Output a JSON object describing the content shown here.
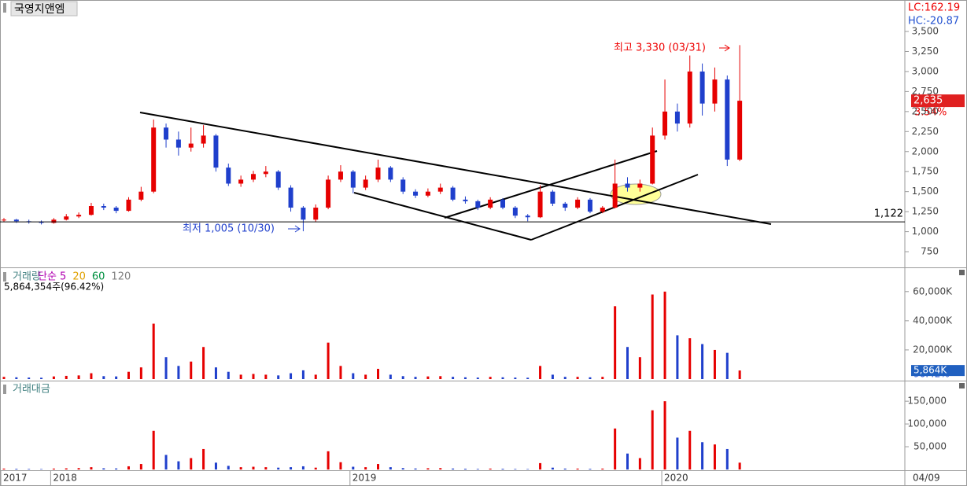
{
  "chart_data": [
    {
      "type": "candlestick",
      "title": "국영지앤엠",
      "lc": "LC:162.19",
      "hc": "HC:-20.87",
      "up_color": "#e60000",
      "down_color": "#1f3fcc",
      "ohlc": [
        [
          1140,
          1170,
          1120,
          1150
        ],
        [
          1150,
          1160,
          1110,
          1130
        ],
        [
          1130,
          1150,
          1100,
          1120
        ],
        [
          1120,
          1140,
          1090,
          1110
        ],
        [
          1110,
          1170,
          1100,
          1150
        ],
        [
          1150,
          1220,
          1140,
          1190
        ],
        [
          1190,
          1240,
          1170,
          1210
        ],
        [
          1210,
          1360,
          1200,
          1320
        ],
        [
          1320,
          1350,
          1270,
          1300
        ],
        [
          1300,
          1320,
          1230,
          1260
        ],
        [
          1260,
          1430,
          1250,
          1400
        ],
        [
          1400,
          1560,
          1380,
          1500
        ],
        [
          1500,
          2400,
          1480,
          2300
        ],
        [
          2300,
          2350,
          2050,
          2150
        ],
        [
          2150,
          2250,
          1950,
          2050
        ],
        [
          2050,
          2300,
          2000,
          2100
        ],
        [
          2100,
          2330,
          2050,
          2200
        ],
        [
          2200,
          2220,
          1750,
          1800
        ],
        [
          1800,
          1850,
          1570,
          1600
        ],
        [
          1600,
          1700,
          1560,
          1650
        ],
        [
          1650,
          1760,
          1620,
          1720
        ],
        [
          1720,
          1820,
          1680,
          1750
        ],
        [
          1750,
          1770,
          1520,
          1550
        ],
        [
          1550,
          1580,
          1250,
          1300
        ],
        [
          1300,
          1320,
          1005,
          1150
        ],
        [
          1150,
          1340,
          1120,
          1300
        ],
        [
          1300,
          1700,
          1280,
          1650
        ],
        [
          1650,
          1830,
          1620,
          1750
        ],
        [
          1750,
          1770,
          1480,
          1550
        ],
        [
          1550,
          1700,
          1520,
          1650
        ],
        [
          1650,
          1900,
          1620,
          1800
        ],
        [
          1800,
          1820,
          1620,
          1650
        ],
        [
          1650,
          1680,
          1470,
          1500
        ],
        [
          1500,
          1530,
          1420,
          1450
        ],
        [
          1450,
          1540,
          1430,
          1500
        ],
        [
          1500,
          1600,
          1470,
          1550
        ],
        [
          1550,
          1570,
          1380,
          1400
        ],
        [
          1400,
          1440,
          1350,
          1380
        ],
        [
          1380,
          1400,
          1270,
          1300
        ],
        [
          1300,
          1430,
          1280,
          1400
        ],
        [
          1400,
          1420,
          1280,
          1300
        ],
        [
          1300,
          1320,
          1170,
          1200
        ],
        [
          1200,
          1220,
          1130,
          1180
        ],
        [
          1180,
          1580,
          1170,
          1500
        ],
        [
          1500,
          1520,
          1320,
          1350
        ],
        [
          1350,
          1370,
          1260,
          1300
        ],
        [
          1300,
          1430,
          1280,
          1400
        ],
        [
          1400,
          1420,
          1230,
          1250
        ],
        [
          1250,
          1320,
          1230,
          1300
        ],
        [
          1300,
          1900,
          1290,
          1600
        ],
        [
          1600,
          1680,
          1500,
          1550
        ],
        [
          1550,
          1650,
          1500,
          1600
        ],
        [
          1600,
          2300,
          1590,
          2200
        ],
        [
          2200,
          2900,
          2150,
          2500
        ],
        [
          2500,
          2600,
          2250,
          2350
        ],
        [
          2350,
          3200,
          2300,
          3000
        ],
        [
          3000,
          3100,
          2450,
          2600
        ],
        [
          2600,
          3050,
          2500,
          2900
        ],
        [
          2900,
          2950,
          1820,
          1900
        ],
        [
          1900,
          3330,
          1880,
          2635
        ]
      ],
      "categories": [
        "2017",
        null,
        null,
        null,
        "2018",
        null,
        null,
        null,
        null,
        null,
        null,
        null,
        null,
        null,
        null,
        null,
        null,
        null,
        null,
        null,
        null,
        null,
        null,
        null,
        null,
        null,
        null,
        null,
        "2019",
        null,
        null,
        null,
        null,
        null,
        null,
        null,
        null,
        null,
        null,
        null,
        null,
        null,
        null,
        null,
        null,
        null,
        null,
        null,
        null,
        null,
        null,
        null,
        null,
        "2020",
        null,
        null,
        null,
        null,
        null,
        null
      ],
      "last_date": "04/09",
      "ylim": [
        554,
        3893
      ],
      "yticks": [
        {
          "value": 750,
          "label": "750"
        },
        {
          "value": 1000,
          "label": "1,000"
        },
        {
          "value": 1250,
          "label": "1,250"
        },
        {
          "value": 1500,
          "label": "1,500"
        },
        {
          "value": 1750,
          "label": "1,750"
        },
        {
          "value": 2000,
          "label": "2,000"
        },
        {
          "value": 2250,
          "label": "2,250"
        },
        {
          "value": 2500,
          "label": "2,500"
        },
        {
          "value": 2750,
          "label": "2,750"
        },
        {
          "value": 3000,
          "label": "3,000"
        },
        {
          "value": 3250,
          "label": "3,250"
        },
        {
          "value": 3500,
          "label": "3,500"
        }
      ],
      "last": {
        "value": 2635,
        "label": "2,635"
      },
      "change": "3.54%",
      "high_note": "최고 3,330 (03/31)",
      "low_note": "최저 1,005 (10/30)",
      "ref_line": {
        "value": 1122,
        "label": "1,122"
      }
    },
    {
      "type": "bar",
      "title": "거래량",
      "legend": [
        "단순 5",
        "20",
        "60",
        "120"
      ],
      "legend_colors": [
        "#b000b0",
        "#e0a000",
        "#009040",
        "#808080"
      ],
      "info": "5,864,354주(96.42%)",
      "values": [
        1500,
        1200,
        1000,
        900,
        1800,
        2200,
        2500,
        4000,
        2000,
        1800,
        5000,
        8000,
        38000,
        15000,
        9000,
        12000,
        22000,
        8000,
        5000,
        3000,
        3500,
        3000,
        2500,
        4000,
        6000,
        3000,
        25000,
        9000,
        4000,
        3000,
        7000,
        3000,
        2000,
        1500,
        1800,
        2000,
        1500,
        1200,
        1000,
        1500,
        1200,
        1000,
        900,
        9000,
        3000,
        1500,
        1500,
        1200,
        1500,
        50000,
        22000,
        15000,
        58000,
        60000,
        30000,
        28000,
        24000,
        20000,
        18000,
        5864
      ],
      "ylim": [
        0,
        75000
      ],
      "yticks": [
        {
          "value": 20000,
          "label": "20,000K"
        },
        {
          "value": 40000,
          "label": "40,000K"
        },
        {
          "value": 60000,
          "label": "60,000K"
        }
      ],
      "last": {
        "value": 5864,
        "label": "5,864K"
      },
      "ratio": "96.42%"
    },
    {
      "type": "bar",
      "title": "거래대금",
      "values": [
        2000,
        1500,
        1200,
        1000,
        2000,
        2500,
        3000,
        5000,
        2600,
        2300,
        7000,
        12000,
        85000,
        32000,
        18000,
        25000,
        45000,
        15000,
        8000,
        5000,
        6000,
        5000,
        4000,
        5000,
        7000,
        4000,
        40000,
        16000,
        6000,
        5000,
        12000,
        5000,
        3000,
        2200,
        2700,
        3000,
        2100,
        1700,
        1300,
        2000,
        1600,
        1200,
        1000,
        14000,
        4000,
        2000,
        2000,
        1500,
        2000,
        90000,
        35000,
        25000,
        130000,
        150000,
        70000,
        85000,
        60000,
        55000,
        45000,
        15000
      ],
      "ylim": [
        0,
        190000
      ],
      "yticks": [
        {
          "value": 50000,
          "label": "50,000"
        },
        {
          "value": 100000,
          "label": "100,000"
        },
        {
          "value": 150000,
          "label": "150,000"
        }
      ]
    }
  ]
}
